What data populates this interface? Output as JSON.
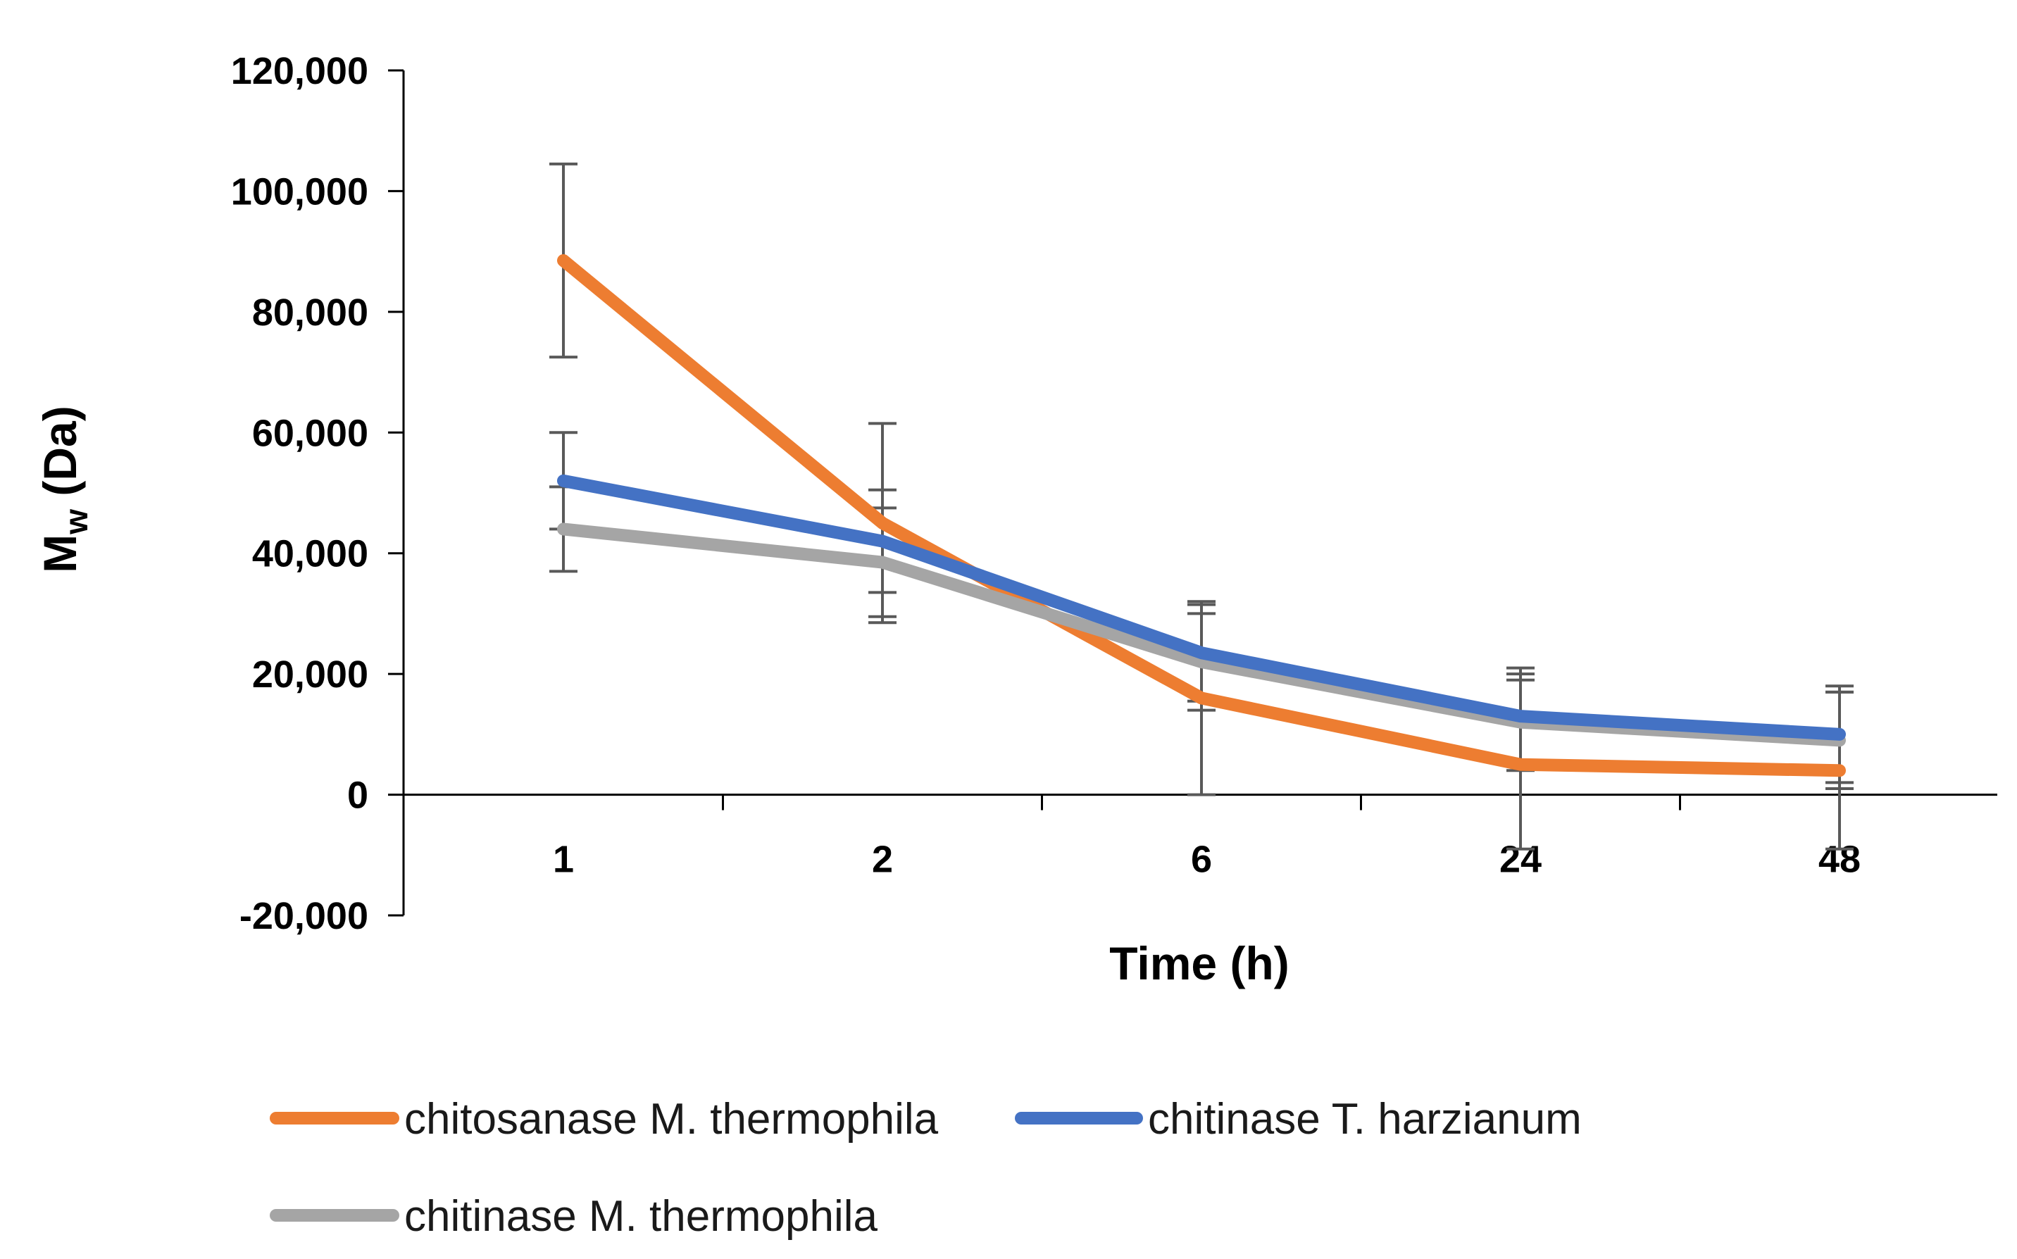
{
  "chart_data": {
    "type": "line",
    "title": "",
    "xlabel": "Time (h)",
    "ylabel": "M",
    "ylabel_subscript": "w",
    "ylabel_unit": " (Da)",
    "categories": [
      "1",
      "2",
      "6",
      "24",
      "48"
    ],
    "ylim": [
      -20000,
      120000
    ],
    "yticks": [
      -20000,
      0,
      20000,
      40000,
      60000,
      80000,
      100000,
      120000
    ],
    "ytick_labels": [
      "-20,000",
      "0",
      "20,000",
      "40,000",
      "60,000",
      "80,000",
      "100,000",
      "120,000"
    ],
    "grid": false,
    "legend_position": "bottom",
    "series": [
      {
        "name": "chitosanase M. thermophila",
        "color": "#ED7D31",
        "values": [
          88500,
          45000,
          16000,
          5000,
          4000
        ],
        "errors": [
          16000,
          16500,
          16000,
          14000,
          13000
        ]
      },
      {
        "name": "chitinase T. harzianum",
        "color": "#4472C4",
        "values": [
          52000,
          42000,
          23500,
          13000,
          10000
        ],
        "errors": [
          8000,
          8500,
          8000,
          8000,
          8000
        ]
      },
      {
        "name": "chitinase M. thermophila",
        "color": "#A5A5A5",
        "values": [
          44000,
          38500,
          22000,
          12000,
          9000
        ],
        "errors": [
          7000,
          9000,
          8000,
          8000,
          8000
        ]
      }
    ],
    "errorbar_color": "#595959"
  }
}
